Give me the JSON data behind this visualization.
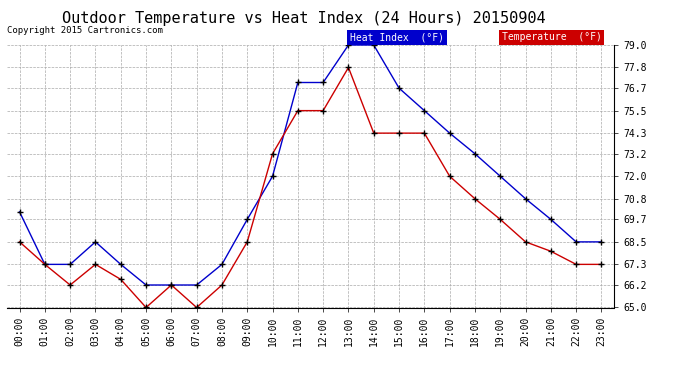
{
  "title": "Outdoor Temperature vs Heat Index (24 Hours) 20150904",
  "copyright": "Copyright 2015 Cartronics.com",
  "hours": [
    "00:00",
    "01:00",
    "02:00",
    "03:00",
    "04:00",
    "05:00",
    "06:00",
    "07:00",
    "08:00",
    "09:00",
    "10:00",
    "11:00",
    "12:00",
    "13:00",
    "14:00",
    "15:00",
    "16:00",
    "17:00",
    "18:00",
    "19:00",
    "20:00",
    "21:00",
    "22:00",
    "23:00"
  ],
  "heat_index": [
    70.1,
    67.3,
    67.3,
    68.5,
    67.3,
    66.2,
    66.2,
    66.2,
    67.3,
    69.7,
    72.0,
    77.0,
    77.0,
    79.0,
    79.0,
    76.7,
    75.5,
    74.3,
    73.2,
    72.0,
    70.8,
    69.7,
    68.5,
    68.5
  ],
  "temperature": [
    68.5,
    67.3,
    66.2,
    67.3,
    66.5,
    65.0,
    66.2,
    65.0,
    66.2,
    68.5,
    73.2,
    75.5,
    75.5,
    77.8,
    74.3,
    74.3,
    74.3,
    72.0,
    70.8,
    69.7,
    68.5,
    68.0,
    67.3,
    67.3
  ],
  "heat_index_color": "#0000cc",
  "temperature_color": "#cc0000",
  "background_color": "#ffffff",
  "plot_bg_color": "#ffffff",
  "grid_color": "#aaaaaa",
  "ylim": [
    65.0,
    79.0
  ],
  "yticks": [
    65.0,
    66.2,
    67.3,
    68.5,
    69.7,
    70.8,
    72.0,
    73.2,
    74.3,
    75.5,
    76.7,
    77.8,
    79.0
  ],
  "title_fontsize": 11,
  "axis_fontsize": 7,
  "copyright_fontsize": 6.5,
  "legend_heat_index_label": "Heat Index  (°F)",
  "legend_temperature_label": "Temperature  (°F)",
  "legend_heat_index_bg": "#0000cc",
  "legend_temperature_bg": "#cc0000",
  "marker": "+",
  "marker_color": "#000000",
  "marker_size": 4,
  "line_width": 1.0
}
